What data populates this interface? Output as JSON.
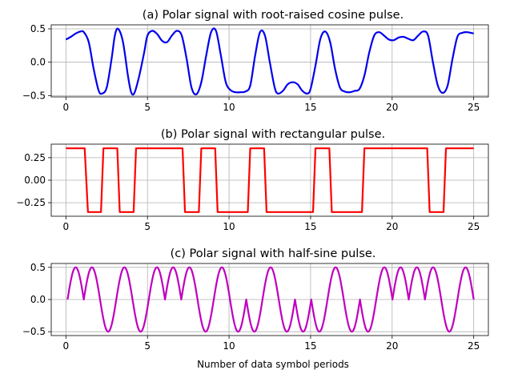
{
  "chart_data": [
    {
      "type": "line",
      "title": "(a) Polar signal with root-raised cosine pulse.",
      "xlabel": "",
      "ylabel": "",
      "xlim": [
        -0.9,
        25.9
      ],
      "ylim": [
        -0.52,
        0.56
      ],
      "xticks": [
        0,
        5,
        10,
        15,
        20,
        25
      ],
      "xtick_labels": [
        "0",
        "5",
        "10",
        "15",
        "20",
        "25"
      ],
      "yticks": [
        -0.5,
        0.0,
        0.5
      ],
      "ytick_labels": [
        "−0.5",
        "0.0",
        "0.5"
      ],
      "grid": true,
      "color": "#0000ee",
      "series": [
        {
          "x": [
            0,
            0.3,
            0.6,
            0.9,
            1.1,
            1.4,
            1.7,
            2.0,
            2.2,
            2.5,
            2.8,
            3.0,
            3.2,
            3.5,
            3.8,
            4.0,
            4.2,
            4.5,
            4.8,
            5.0,
            5.3,
            5.6,
            5.9,
            6.2,
            6.5,
            6.8,
            7.1,
            7.4,
            7.7,
            8.0,
            8.3,
            8.6,
            8.9,
            9.2,
            9.5,
            9.8,
            10.1,
            10.4,
            10.7,
            11.0,
            11.3,
            11.6,
            11.9,
            12.2,
            12.5,
            12.8,
            13.0,
            13.3,
            13.6,
            13.9,
            14.2,
            14.5,
            14.8,
            15.0,
            15.3,
            15.6,
            15.9,
            16.2,
            16.5,
            16.8,
            17.1,
            17.4,
            17.7,
            18.0,
            18.3,
            18.6,
            18.9,
            19.2,
            19.5,
            19.8,
            20.1,
            20.4,
            20.7,
            21.0,
            21.3,
            21.6,
            21.9,
            22.2,
            22.5,
            22.8,
            23.1,
            23.4,
            23.7,
            24.0,
            24.3,
            24.6,
            25.0
          ],
          "y": [
            0.34,
            0.38,
            0.43,
            0.46,
            0.45,
            0.3,
            -0.1,
            -0.42,
            -0.47,
            -0.38,
            0.05,
            0.4,
            0.5,
            0.3,
            -0.2,
            -0.45,
            -0.46,
            -0.2,
            0.15,
            0.4,
            0.47,
            0.42,
            0.32,
            0.3,
            0.4,
            0.47,
            0.4,
            0.05,
            -0.38,
            -0.48,
            -0.3,
            0.1,
            0.45,
            0.47,
            0.1,
            -0.3,
            -0.42,
            -0.45,
            -0.45,
            -0.44,
            -0.35,
            0.1,
            0.45,
            0.4,
            0.0,
            -0.38,
            -0.47,
            -0.43,
            -0.33,
            -0.3,
            -0.33,
            -0.43,
            -0.47,
            -0.4,
            -0.05,
            0.35,
            0.46,
            0.3,
            -0.1,
            -0.38,
            -0.44,
            -0.45,
            -0.43,
            -0.4,
            -0.2,
            0.15,
            0.4,
            0.45,
            0.4,
            0.34,
            0.33,
            0.37,
            0.38,
            0.35,
            0.33,
            0.4,
            0.46,
            0.4,
            0.0,
            -0.35,
            -0.46,
            -0.35,
            0.05,
            0.38,
            0.44,
            0.45,
            0.43
          ]
        }
      ]
    },
    {
      "type": "line",
      "title": "(b) Polar signal with rectangular pulse.",
      "xlabel": "",
      "ylabel": "",
      "xlim": [
        -0.9,
        25.9
      ],
      "ylim": [
        -0.4,
        0.4
      ],
      "xticks": [
        0,
        5,
        10,
        15,
        20,
        25
      ],
      "xtick_labels": [
        "0",
        "5",
        "10",
        "15",
        "20",
        "25"
      ],
      "yticks": [
        -0.25,
        0.0,
        0.25
      ],
      "ytick_labels": [
        "−0.25",
        "0.00",
        "0.25"
      ],
      "grid": true,
      "color": "#ff0000",
      "series": [
        {
          "x": [
            0,
            1.15,
            1.35,
            2.15,
            2.3,
            3.15,
            3.3,
            4.15,
            4.3,
            7.15,
            7.3,
            8.15,
            8.3,
            9.15,
            9.3,
            11.15,
            11.3,
            12.15,
            12.3,
            15.15,
            15.3,
            16.15,
            16.3,
            18.15,
            18.3,
            22.15,
            22.3,
            23.15,
            23.3,
            25.0
          ],
          "y": [
            0.354,
            0.354,
            -0.354,
            -0.354,
            0.354,
            0.354,
            -0.354,
            -0.354,
            0.354,
            0.354,
            -0.354,
            -0.354,
            0.354,
            0.354,
            -0.354,
            -0.354,
            0.354,
            0.354,
            -0.354,
            -0.354,
            0.354,
            0.354,
            -0.354,
            -0.354,
            0.354,
            0.354,
            -0.354,
            -0.354,
            0.354,
            0.354
          ]
        }
      ]
    },
    {
      "type": "line",
      "title": "(c) Polar signal with half-sine pulse.",
      "xlabel": "Number of data symbol periods",
      "ylabel": "",
      "xlim": [
        -0.9,
        25.9
      ],
      "ylim": [
        -0.56,
        0.56
      ],
      "xticks": [
        0,
        5,
        10,
        15,
        20,
        25
      ],
      "xtick_labels": [
        "0",
        "5",
        "10",
        "15",
        "20",
        "25"
      ],
      "yticks": [
        -0.5,
        0.0,
        0.5
      ],
      "ytick_labels": [
        "−0.5",
        "0.0",
        "0.5"
      ],
      "grid": true,
      "color": "#bf00bf",
      "series": [
        {
          "symbols": [
            1,
            1,
            -1,
            1,
            -1,
            1,
            1,
            1,
            -1,
            1,
            -1,
            -1,
            1,
            -1,
            -1,
            -1,
            1,
            -1,
            -1,
            1,
            1,
            1,
            1,
            -1,
            1
          ],
          "x_start": 0.1,
          "x_end": 25.0,
          "amplitude": 0.5
        }
      ]
    }
  ]
}
